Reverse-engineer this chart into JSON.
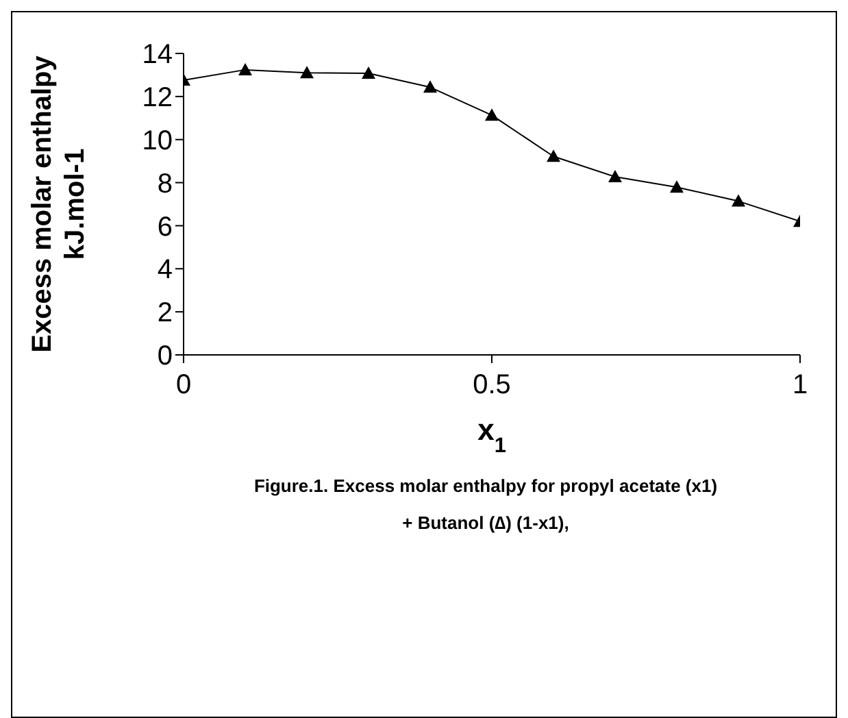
{
  "chart_data": {
    "type": "line",
    "xlabel": "x$_{1}$",
    "ylabel": "Excess molar enthalpy\nkJ.mol-1",
    "annotations": [
      "Figure.1. Excess molar enthalpy for propyl acetate  (x1)",
      "+  Butanol (∆) (1-x1),"
    ],
    "x": [
      0,
      0.1,
      0.2,
      0.3,
      0.4,
      0.5,
      0.6,
      0.7,
      0.8,
      0.9,
      1
    ],
    "series": [
      {
        "color": "#000000",
        "values": [
          12.76,
          13.24,
          13.1,
          13.08,
          12.43,
          11.13,
          9.22,
          8.27,
          7.79,
          7.14,
          6.2
        ]
      }
    ],
    "xlim": [
      0,
      1
    ],
    "xticks": [
      0,
      0.5,
      1
    ],
    "ylim": [
      0,
      14
    ],
    "yticks": [
      0,
      2,
      4,
      6,
      8,
      10,
      12,
      14
    ],
    "grid": false,
    "legend": false,
    "marker": "triangle",
    "line_style": "solid"
  }
}
